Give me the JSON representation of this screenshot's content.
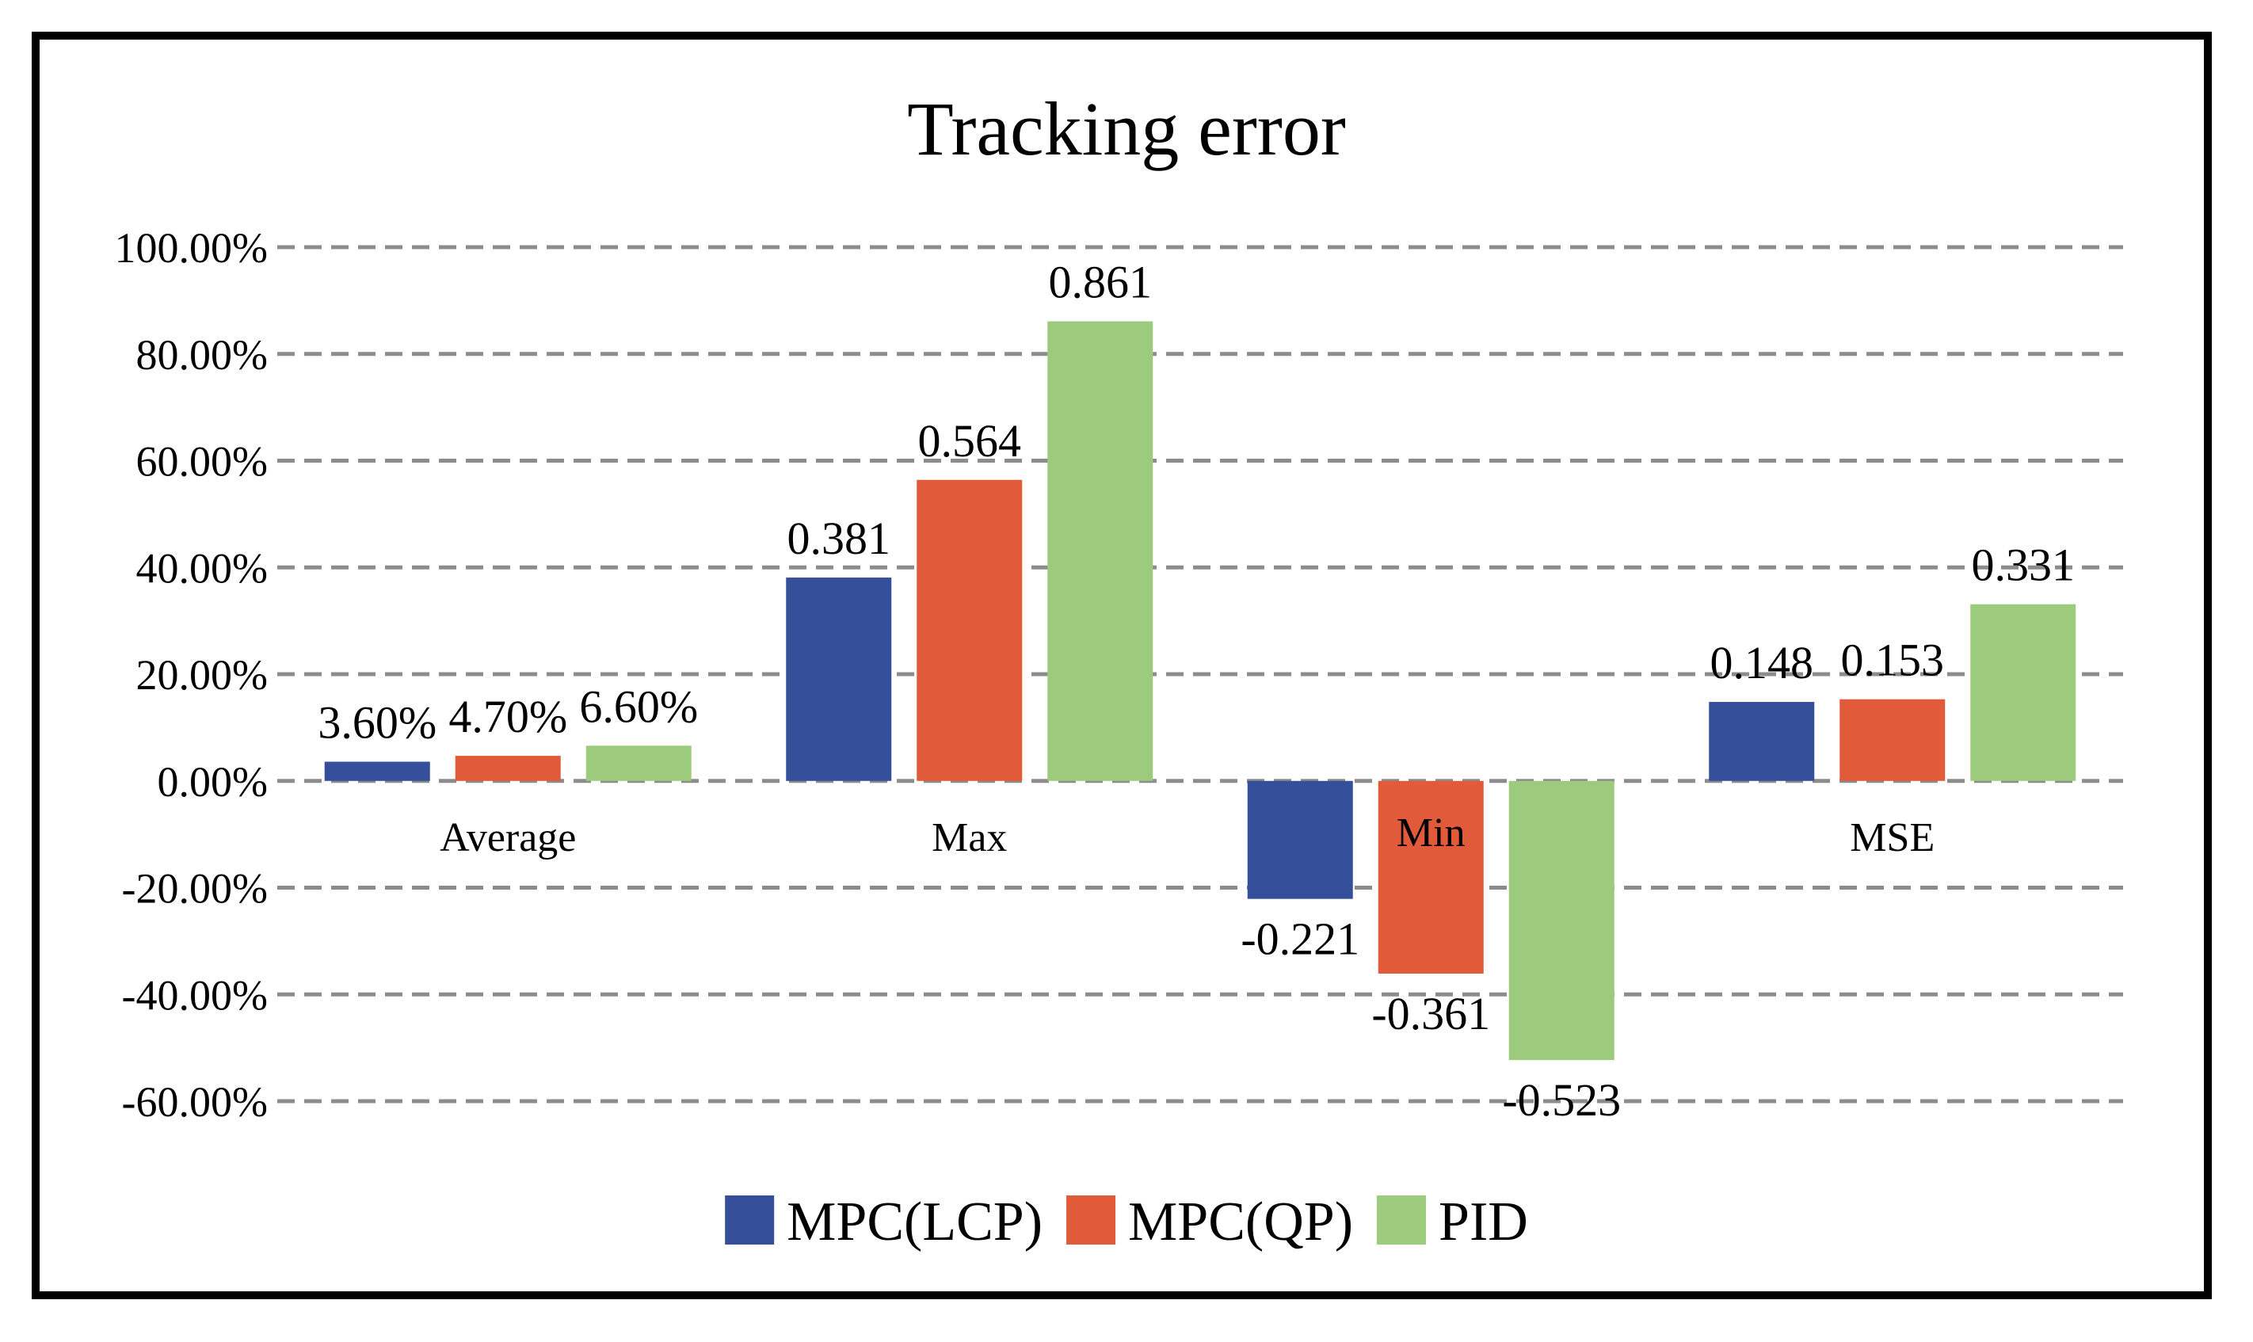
{
  "chart_data": {
    "type": "bar",
    "title": "Tracking error",
    "categories": [
      "Average",
      "Max",
      "Min",
      "MSE"
    ],
    "series": [
      {
        "name": "MPC(LCP)",
        "color": "#364f9a",
        "values": [
          0.036,
          0.381,
          -0.221,
          0.148
        ],
        "labels": [
          "3.60%",
          "0.381",
          "-0.221",
          "0.148"
        ]
      },
      {
        "name": "MPC(QP)",
        "color": "#e15a3a",
        "values": [
          0.047,
          0.564,
          -0.361,
          0.153
        ],
        "labels": [
          "4.70%",
          "0.564",
          "-0.361",
          "0.153"
        ]
      },
      {
        "name": "PID",
        "color": "#9ccb7d",
        "values": [
          0.066,
          0.861,
          -0.523,
          0.331
        ],
        "labels": [
          "6.60%",
          "0.861",
          "-0.523",
          "0.331"
        ]
      }
    ],
    "yticks": [
      1.0,
      0.8,
      0.6,
      0.4,
      0.2,
      0.0,
      -0.2,
      -0.4,
      -0.6
    ],
    "ytick_labels": [
      "100.00%",
      "80.00%",
      "60.00%",
      "40.00%",
      "20.00%",
      "0.00%",
      "-20.00%",
      "-40.00%",
      "-60.00%"
    ],
    "ylim": [
      -0.6,
      1.0
    ],
    "grid": true,
    "legend_position": "bottom-center"
  }
}
